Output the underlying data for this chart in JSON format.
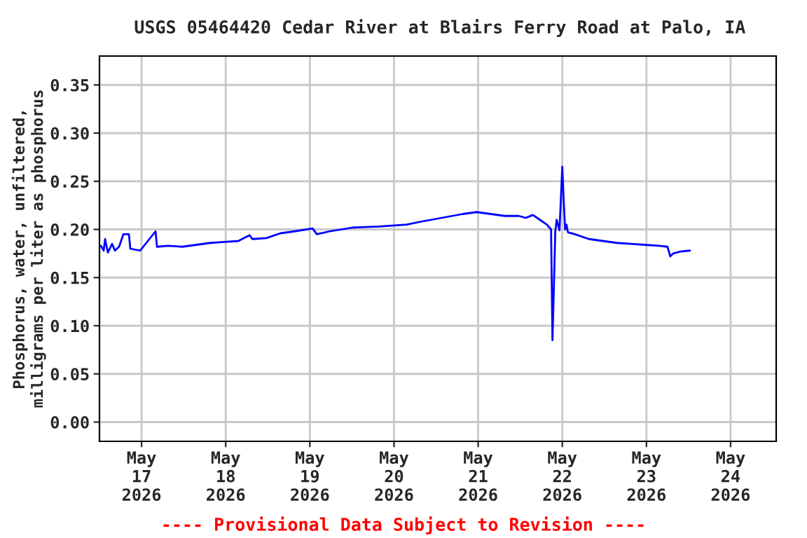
{
  "chart_data": {
    "type": "line",
    "title": "USGS 05464420 Cedar River at Blairs Ferry Road at Palo, IA",
    "ylabel": "Phosphorus, water, unfiltered,\nmilligrams per liter as phosphorus",
    "annotations": [
      "---- Provisional Data Subject to Revision ----"
    ],
    "grid": true,
    "line_style": "solid",
    "xlim": [
      "2026-05-16T12:00",
      "2026-05-24T13:00"
    ],
    "xticks": [
      {
        "value": "2026-05-17",
        "label": "May\n17\n2026"
      },
      {
        "value": "2026-05-18",
        "label": "May\n18\n2026"
      },
      {
        "value": "2026-05-19",
        "label": "May\n19\n2026"
      },
      {
        "value": "2026-05-20",
        "label": "May\n20\n2026"
      },
      {
        "value": "2026-05-21",
        "label": "May\n21\n2026"
      },
      {
        "value": "2026-05-22",
        "label": "May\n22\n2026"
      },
      {
        "value": "2026-05-23",
        "label": "May\n23\n2026"
      },
      {
        "value": "2026-05-24",
        "label": "May\n24\n2026"
      }
    ],
    "ylim": [
      -0.02,
      0.38
    ],
    "yticks": [
      {
        "value": 0,
        "label": "0.00"
      },
      {
        "value": 0.05,
        "label": "0.05"
      },
      {
        "value": 0.1,
        "label": "0.10"
      },
      {
        "value": 0.15,
        "label": "0.15"
      },
      {
        "value": 0.2,
        "label": "0.20"
      },
      {
        "value": 0.25,
        "label": "0.25"
      },
      {
        "value": 0.3,
        "label": "0.30"
      },
      {
        "value": 0.35,
        "label": "0.35"
      }
    ],
    "x": [
      "2026-05-16T12:24",
      "2026-05-16T13:12",
      "2026-05-16T13:36",
      "2026-05-16T14:24",
      "2026-05-16T15:36",
      "2026-05-16T16:24",
      "2026-05-16T17:36",
      "2026-05-16T18:48",
      "2026-05-16T20:24",
      "2026-05-16T20:48",
      "2026-05-16T23:36",
      "2026-05-17T04:00",
      "2026-05-17T04:24",
      "2026-05-17T07:36",
      "2026-05-17T11:36",
      "2026-05-17T15:36",
      "2026-05-17T19:36",
      "2026-05-17T23:36",
      "2026-05-18T03:36",
      "2026-05-18T06:48",
      "2026-05-18T07:36",
      "2026-05-18T11:36",
      "2026-05-18T15:36",
      "2026-05-18T19:36",
      "2026-05-19T00:48",
      "2026-05-19T02:00",
      "2026-05-19T05:36",
      "2026-05-19T12:24",
      "2026-05-19T19:36",
      "2026-05-20T03:36",
      "2026-05-20T07:36",
      "2026-05-20T13:36",
      "2026-05-20T19:36",
      "2026-05-20T23:36",
      "2026-05-21T03:36",
      "2026-05-21T07:36",
      "2026-05-21T11:36",
      "2026-05-21T13:36",
      "2026-05-21T15:36",
      "2026-05-21T17:36",
      "2026-05-21T19:36",
      "2026-05-21T20:48",
      "2026-05-21T21:12",
      "2026-05-21T21:36",
      "2026-05-21T22:00",
      "2026-05-21T22:24",
      "2026-05-21T23:12",
      "2026-05-22T00:00",
      "2026-05-22T00:24",
      "2026-05-22T00:48",
      "2026-05-22T01:12",
      "2026-05-22T01:36",
      "2026-05-22T03:36",
      "2026-05-22T07:36",
      "2026-05-22T11:36",
      "2026-05-22T15:36",
      "2026-05-22T19:36",
      "2026-05-22T23:36",
      "2026-05-23T03:36",
      "2026-05-23T06:00",
      "2026-05-23T06:48",
      "2026-05-23T07:36",
      "2026-05-23T09:36",
      "2026-05-23T12:24"
    ],
    "series": [
      {
        "color": "#0000ff",
        "values": [
          0.183,
          0.178,
          0.19,
          0.176,
          0.185,
          0.178,
          0.182,
          0.195,
          0.195,
          0.18,
          0.178,
          0.198,
          0.182,
          0.183,
          0.182,
          0.184,
          0.186,
          0.187,
          0.188,
          0.194,
          0.19,
          0.191,
          0.196,
          0.198,
          0.201,
          0.195,
          0.198,
          0.202,
          0.203,
          0.205,
          0.208,
          0.212,
          0.216,
          0.218,
          0.216,
          0.214,
          0.214,
          0.212,
          0.215,
          0.21,
          0.205,
          0.2,
          0.085,
          0.14,
          0.198,
          0.21,
          0.199,
          0.265,
          0.23,
          0.2,
          0.205,
          0.197,
          0.195,
          0.19,
          0.188,
          0.186,
          0.185,
          0.184,
          0.183,
          0.182,
          0.172,
          0.175,
          0.177,
          0.178
        ]
      }
    ]
  }
}
